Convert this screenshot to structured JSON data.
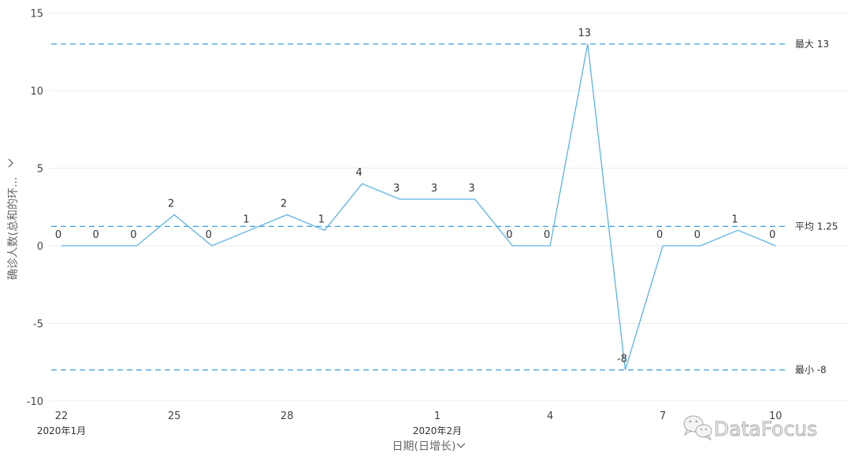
{
  "chart_data": {
    "type": "line",
    "x": [
      "2020-01-22",
      "2020-01-23",
      "2020-01-24",
      "2020-01-25",
      "2020-01-26",
      "2020-01-27",
      "2020-01-28",
      "2020-01-29",
      "2020-01-30",
      "2020-01-31",
      "2020-02-01",
      "2020-02-02",
      "2020-02-03",
      "2020-02-04",
      "2020-02-05",
      "2020-02-06",
      "2020-02-07",
      "2020-02-08",
      "2020-02-09",
      "2020-02-10"
    ],
    "series": [
      {
        "values": [
          0,
          0,
          0,
          2,
          0,
          1,
          2,
          1,
          4,
          3,
          3,
          3,
          0,
          0,
          13,
          -8,
          0,
          0,
          1,
          0
        ]
      }
    ],
    "data_labels": true,
    "ylabel": "确诊人数(总和的环...",
    "xlabel": "日期(日增长)",
    "ylim": [
      -10,
      15
    ],
    "yticks": [
      15,
      10,
      5,
      0,
      -5,
      -10
    ],
    "xtick_labels": [
      {
        "x": "2020-01-22",
        "label": "22"
      },
      {
        "x": "2020-01-25",
        "label": "25"
      },
      {
        "x": "2020-01-28",
        "label": "28"
      },
      {
        "x": "2020-02-01",
        "label": "1"
      },
      {
        "x": "2020-02-04",
        "label": "4"
      },
      {
        "x": "2020-02-07",
        "label": "7"
      },
      {
        "x": "2020-02-10",
        "label": "10"
      }
    ],
    "month_labels": [
      {
        "x": "2020-01-22",
        "label": "2020年1月"
      },
      {
        "x": "2020-02-01",
        "label": "2020年2月"
      }
    ],
    "reference_lines": [
      {
        "label": "最大 13",
        "value": 13
      },
      {
        "label": "平均 1.25",
        "value": 1.25
      },
      {
        "label": "最小 -8",
        "value": -8
      }
    ],
    "grid": true,
    "legend": "none"
  },
  "colors": {
    "series": "#5ab4e6",
    "reference": "#3b9ede",
    "grid": "#ececec",
    "text": "#333333",
    "axis_title": "#666666",
    "watermark": "#a5a5a5"
  },
  "icons": {
    "y_axis_toggle": "chevron-right-icon",
    "x_axis_menu": "chevron-down-icon",
    "watermark_logo": "wechat-icon"
  },
  "watermark": {
    "text": "DataFocus"
  }
}
